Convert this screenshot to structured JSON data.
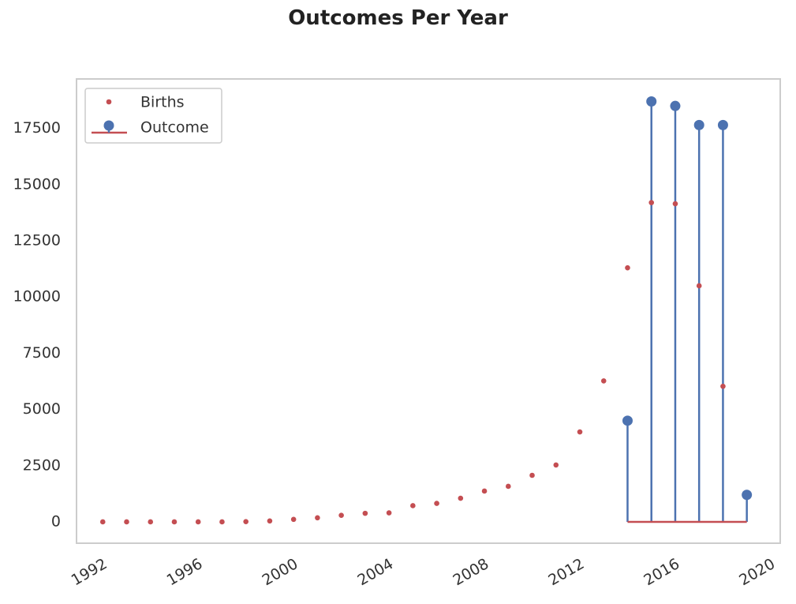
{
  "chart_data": {
    "type": "scatter",
    "title": "Outcomes Per Year",
    "xlabel": "",
    "ylabel": "",
    "xlim": [
      1990.9,
      2020.4
    ],
    "ylim": [
      -950,
      19700
    ],
    "x_ticks": [
      "1992",
      "1996",
      "2000",
      "2004",
      "2008",
      "2012",
      "2016",
      "2020"
    ],
    "y_ticks": [
      "0",
      "2500",
      "5000",
      "7500",
      "10000",
      "12500",
      "15000",
      "17500"
    ],
    "grid": false,
    "legend": {
      "placement": "top-left"
    },
    "series": [
      {
        "name": "Births",
        "kind": "dots",
        "color": "#c44e52",
        "points": [
          {
            "x": "1992-01-01",
            "y": 0
          },
          {
            "x": "1993-01-01",
            "y": 0
          },
          {
            "x": "1994-01-01",
            "y": 0
          },
          {
            "x": "1995-01-01",
            "y": 0
          },
          {
            "x": "1996-01-01",
            "y": 0
          },
          {
            "x": "1997-01-01",
            "y": 0
          },
          {
            "x": "1998-01-01",
            "y": 10
          },
          {
            "x": "1999-01-01",
            "y": 40
          },
          {
            "x": "2000-01-01",
            "y": 110
          },
          {
            "x": "2001-01-01",
            "y": 180
          },
          {
            "x": "2002-01-01",
            "y": 290
          },
          {
            "x": "2003-01-01",
            "y": 380
          },
          {
            "x": "2004-01-01",
            "y": 400
          },
          {
            "x": "2005-01-01",
            "y": 720
          },
          {
            "x": "2006-01-01",
            "y": 820
          },
          {
            "x": "2007-01-01",
            "y": 1050
          },
          {
            "x": "2008-01-01",
            "y": 1370
          },
          {
            "x": "2009-01-01",
            "y": 1580
          },
          {
            "x": "2010-01-01",
            "y": 2070
          },
          {
            "x": "2011-01-01",
            "y": 2530
          },
          {
            "x": "2012-01-01",
            "y": 4000
          },
          {
            "x": "2013-01-01",
            "y": 6270
          },
          {
            "x": "2014-01-01",
            "y": 11300
          },
          {
            "x": "2015-01-01",
            "y": 14200
          },
          {
            "x": "2016-01-01",
            "y": 14150
          },
          {
            "x": "2017-01-01",
            "y": 10500
          },
          {
            "x": "2018-01-01",
            "y": 6030
          }
        ]
      },
      {
        "name": "Outcome",
        "kind": "stem",
        "color": "#4c72b0",
        "baseline_color": "#c44e52",
        "points": [
          {
            "x": "2014-01-01",
            "y": 4500
          },
          {
            "x": "2015-01-01",
            "y": 18700
          },
          {
            "x": "2016-01-01",
            "y": 18500
          },
          {
            "x": "2017-01-01",
            "y": 17650
          },
          {
            "x": "2018-01-01",
            "y": 17650
          },
          {
            "x": "2019-01-01",
            "y": 1200
          }
        ]
      }
    ]
  }
}
